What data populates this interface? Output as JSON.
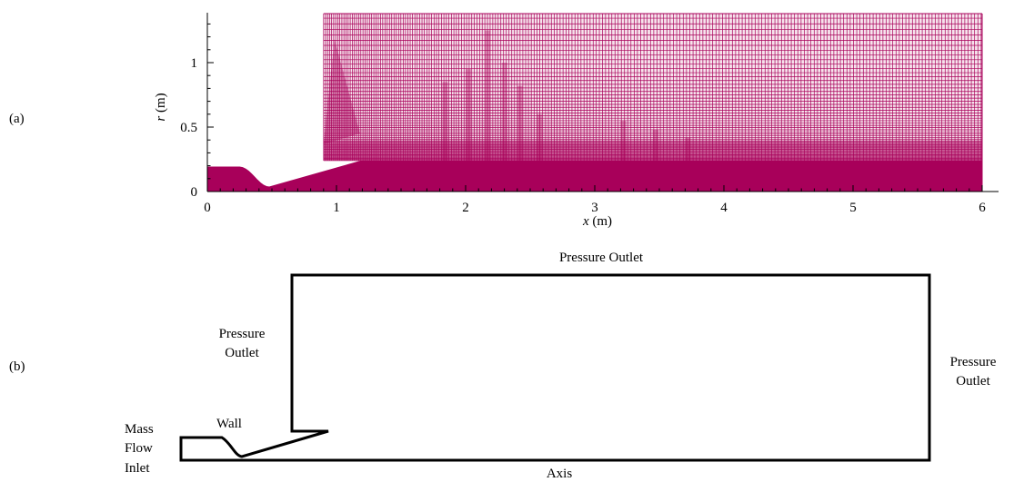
{
  "panel_a": {
    "label": "(a)",
    "x_axis": {
      "label_var": "x",
      "label_unit": " (m)",
      "ticks": [
        "0",
        "1",
        "2",
        "3",
        "4",
        "5",
        "6"
      ],
      "range": [
        0,
        6.1
      ]
    },
    "y_axis": {
      "label_var": "r",
      "label_unit": " (m)",
      "ticks": [
        "0",
        "0.5",
        "1"
      ],
      "range": [
        0,
        1.38
      ]
    },
    "mesh_color": "#a8005a",
    "domain": {
      "inlet_radius": 0.19,
      "throat_x": 0.48,
      "throat_radius": 0.035,
      "nozzle_exit_x": 1.2,
      "nozzle_exit_radius": 0.24,
      "outer_start_x": 0.9,
      "outer_lower_r": 0.24,
      "x_max": 6.0,
      "r_max": 1.38
    }
  },
  "panel_b": {
    "label": "(b)",
    "boundaries": {
      "top": "Pressure Outlet",
      "left_line1": "Pressure",
      "left_line2": "Outlet",
      "right_line1": "Pressure",
      "right_line2": "Outlet",
      "wall": "Wall",
      "inlet_line1": "Mass",
      "inlet_line2": "Flow",
      "inlet_line3": "Inlet",
      "axis": "Axis"
    }
  }
}
